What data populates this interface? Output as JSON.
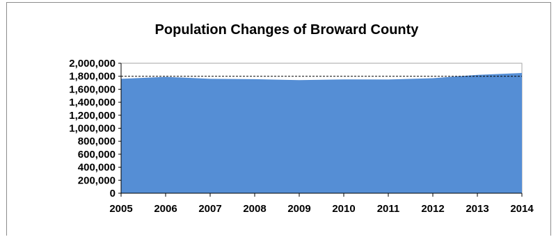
{
  "chart_data": {
    "type": "area",
    "title": "Population Changes of Broward County",
    "xlabel": "",
    "ylabel": "",
    "x": [
      "2005",
      "2006",
      "2007",
      "2008",
      "2009",
      "2010",
      "2011",
      "2012",
      "2013",
      "2014"
    ],
    "series": [
      {
        "values": [
          1760000,
          1790000,
          1760000,
          1755000,
          1740000,
          1752000,
          1750000,
          1770000,
          1820000,
          1850000
        ]
      }
    ],
    "ylim": [
      0,
      2000000
    ],
    "yticks": [
      0,
      200000,
      400000,
      600000,
      800000,
      1000000,
      1200000,
      1400000,
      1600000,
      1800000,
      2000000
    ],
    "ytick_labels": [
      "0",
      "200,000",
      "400,000",
      "600,000",
      "800,000",
      "1,000,000",
      "1,200,000",
      "1,400,000",
      "1,600,000",
      "1,800,000",
      "2,000,000"
    ],
    "reference_line": 1800000,
    "grid": false,
    "legend": "none",
    "colors": {
      "area": "#558ed5",
      "axis": "#000000",
      "reference_line": "#000000",
      "plot_border": "#a6a6a6"
    }
  }
}
